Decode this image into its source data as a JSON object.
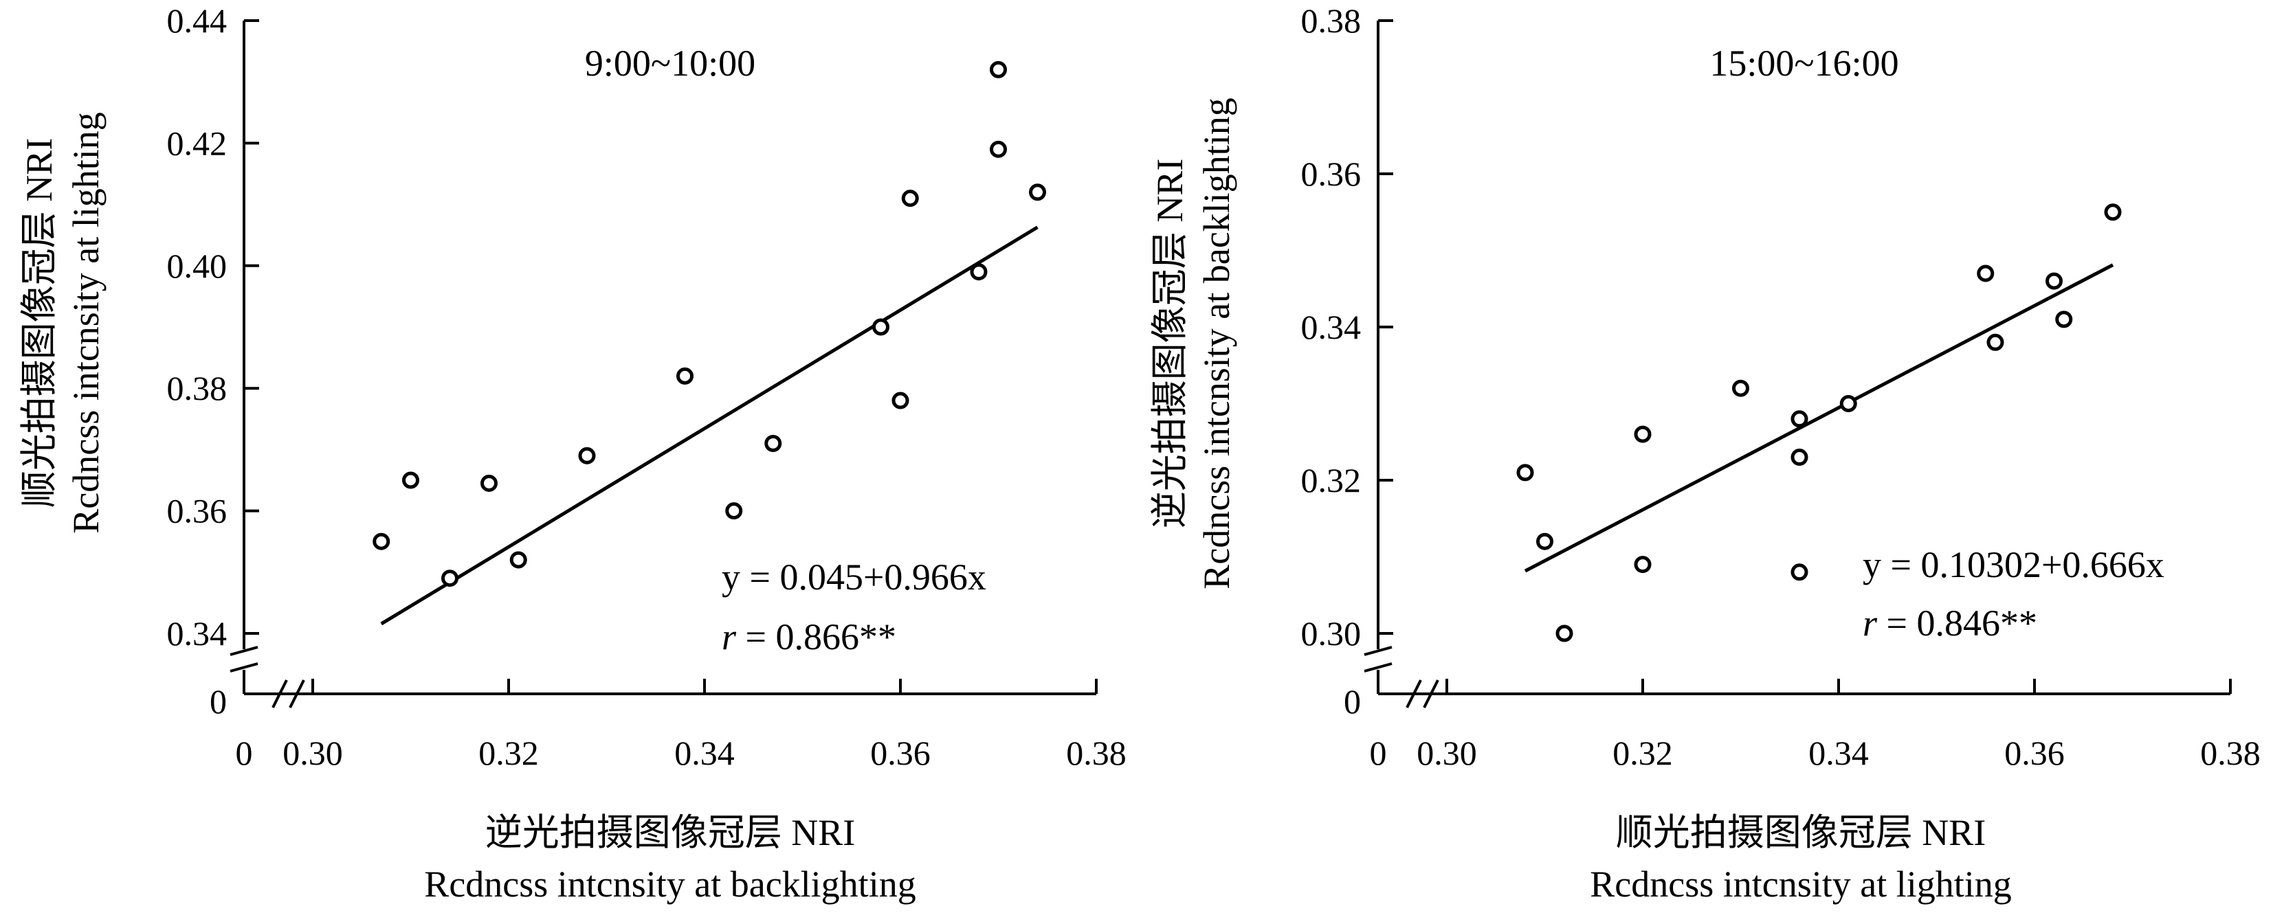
{
  "chart_data": [
    {
      "type": "scatter",
      "title": "9:00~10:00",
      "xlabel": "逆光拍摄图像冠层 NRI",
      "xlabel_en": "Rcdncss intcnsity at backlighting",
      "ylabel": "顺光拍摄图像冠层 NRI",
      "ylabel_en": "Rcdncss intcnsity at lighting",
      "xlim": [
        0.3,
        0.38
      ],
      "ylim": [
        0.34,
        0.44
      ],
      "xticks": [
        "0.30",
        "0.32",
        "0.34",
        "0.36",
        "0.38"
      ],
      "yticks": [
        "0.34",
        "0.36",
        "0.38",
        "0.40",
        "0.42",
        "0.44"
      ],
      "x_origin_label": "0",
      "y_origin_label": "0",
      "points": [
        {
          "x": 0.307,
          "y": 0.355
        },
        {
          "x": 0.31,
          "y": 0.365
        },
        {
          "x": 0.314,
          "y": 0.349
        },
        {
          "x": 0.318,
          "y": 0.3645
        },
        {
          "x": 0.321,
          "y": 0.352
        },
        {
          "x": 0.328,
          "y": 0.369
        },
        {
          "x": 0.338,
          "y": 0.382
        },
        {
          "x": 0.343,
          "y": 0.36
        },
        {
          "x": 0.347,
          "y": 0.371
        },
        {
          "x": 0.358,
          "y": 0.39
        },
        {
          "x": 0.36,
          "y": 0.378
        },
        {
          "x": 0.361,
          "y": 0.411
        },
        {
          "x": 0.368,
          "y": 0.399
        },
        {
          "x": 0.37,
          "y": 0.432
        },
        {
          "x": 0.37,
          "y": 0.419
        },
        {
          "x": 0.374,
          "y": 0.412
        }
      ],
      "fit": {
        "intercept": 0.045,
        "slope": 0.966,
        "x_range": [
          0.307,
          0.374
        ]
      },
      "equation": "y = 0.045+0.966x",
      "r_label": "r",
      "r_text": " = 0.866**"
    },
    {
      "type": "scatter",
      "title": "15:00~16:00",
      "xlabel": "顺光拍摄图像冠层 NRI",
      "xlabel_en": "Rcdncss intcnsity at lighting",
      "ylabel": "逆光拍摄图像冠层 NRI",
      "ylabel_en": "Rcdncss intcnsity at backlighting",
      "xlim": [
        0.3,
        0.38
      ],
      "ylim": [
        0.3,
        0.38
      ],
      "xticks": [
        "0.30",
        "0.32",
        "0.34",
        "0.36",
        "0.38"
      ],
      "yticks": [
        "0.30",
        "0.32",
        "0.34",
        "0.36",
        "0.38"
      ],
      "x_origin_label": "0",
      "y_origin_label": "0",
      "points": [
        {
          "x": 0.308,
          "y": 0.321
        },
        {
          "x": 0.31,
          "y": 0.312
        },
        {
          "x": 0.312,
          "y": 0.3
        },
        {
          "x": 0.32,
          "y": 0.326
        },
        {
          "x": 0.32,
          "y": 0.309
        },
        {
          "x": 0.33,
          "y": 0.332
        },
        {
          "x": 0.336,
          "y": 0.328
        },
        {
          "x": 0.336,
          "y": 0.323
        },
        {
          "x": 0.336,
          "y": 0.308
        },
        {
          "x": 0.341,
          "y": 0.33
        },
        {
          "x": 0.355,
          "y": 0.347
        },
        {
          "x": 0.356,
          "y": 0.338
        },
        {
          "x": 0.362,
          "y": 0.346
        },
        {
          "x": 0.363,
          "y": 0.341
        },
        {
          "x": 0.368,
          "y": 0.355
        }
      ],
      "fit": {
        "intercept": 0.10302,
        "slope": 0.666,
        "x_range": [
          0.308,
          0.368
        ]
      },
      "equation": "y = 0.10302+0.666x",
      "r_label": "r",
      "r_text": " = 0.846**"
    }
  ]
}
